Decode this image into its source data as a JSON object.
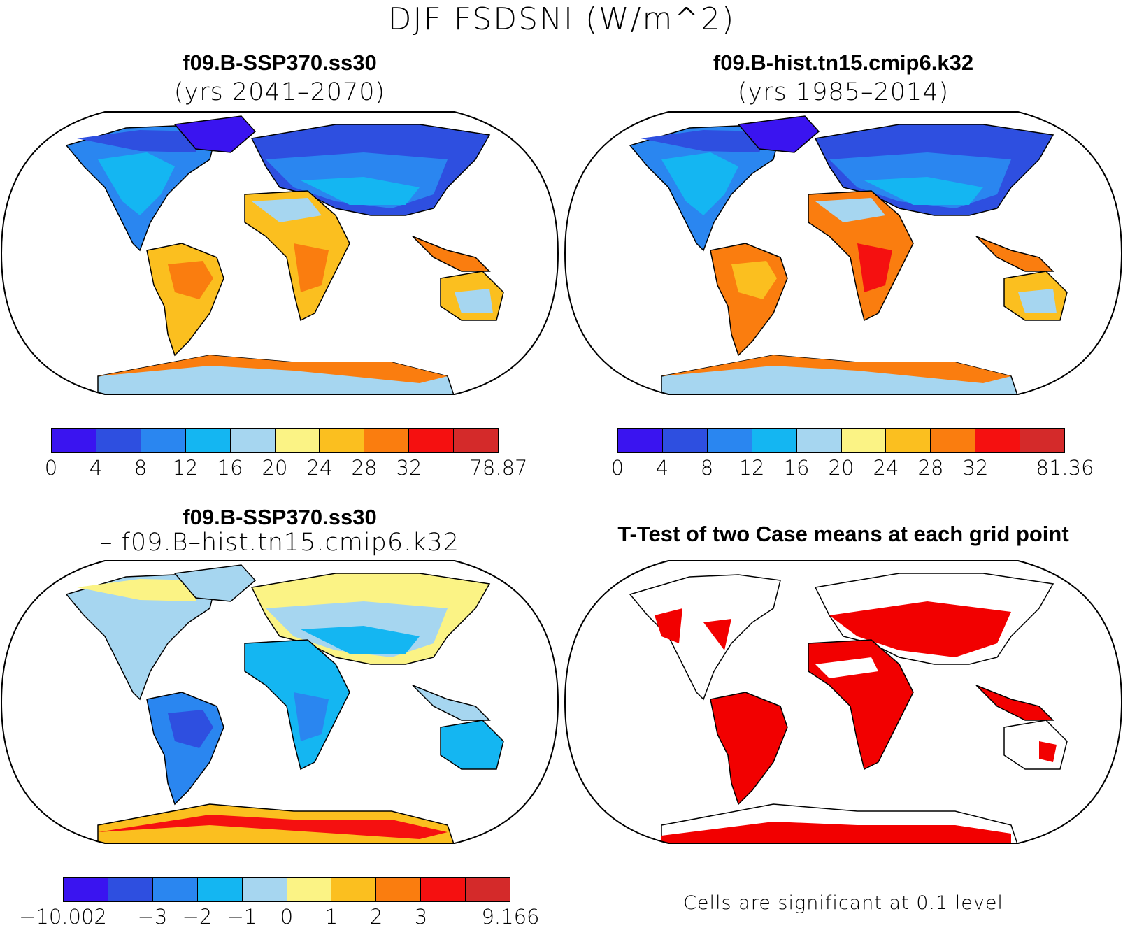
{
  "title": "DJF FSDSNI (W/m^2)",
  "panels": {
    "p1": {
      "case": "f09.B-SSP370.ss30",
      "years": "(yrs 2041–2070)"
    },
    "p2": {
      "case": "f09.B-hist.tn15.cmip6.k32",
      "years": "(yrs 1985–2014)"
    },
    "p3": {
      "case": "f09.B-SSP370.ss30",
      "minus": "– f09.B–hist.tn15.cmip6.k32"
    },
    "p4": {
      "title": "T-Test of two Case means at each grid point",
      "note": "Cells are significant at 0.1 level"
    }
  },
  "colorbars": {
    "abs_colors": [
      "#3a14f0",
      "#2e4fe0",
      "#2a86f0",
      "#14b6f2",
      "#a6d6f0",
      "#fbf385",
      "#fbbf1f",
      "#fa7d0f",
      "#f51010",
      "#d42a2a"
    ],
    "diff_colors": [
      "#3a14f0",
      "#2e4fe0",
      "#2a86f0",
      "#14b6f2",
      "#a6d6f0",
      "#fbf385",
      "#fbbf1f",
      "#fa7d0f",
      "#f51010",
      "#d42a2a"
    ],
    "p1_labels": [
      "0",
      "4",
      "8",
      "12",
      "16",
      "20",
      "24",
      "28",
      "32",
      "78.87"
    ],
    "p2_labels": [
      "0",
      "4",
      "8",
      "12",
      "16",
      "20",
      "24",
      "28",
      "32",
      "81.36"
    ],
    "p3_labels": [
      "−10.002",
      "−3",
      "−2",
      "−1",
      "0",
      "1",
      "2",
      "3",
      "9.166"
    ]
  },
  "map_colors": {
    "ocean": "#ffffff",
    "significant": "#f20000"
  }
}
